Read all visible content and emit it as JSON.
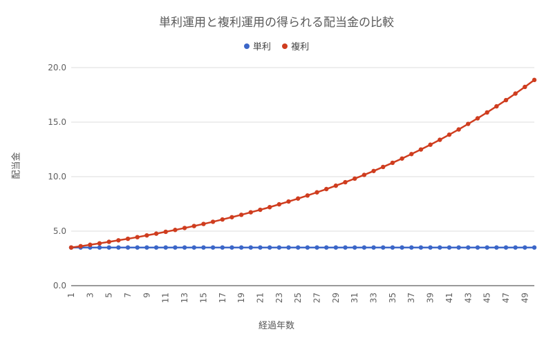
{
  "chart_data": {
    "type": "line",
    "title": "単利運用と複利運用の得られる配当金の比較",
    "xlabel": "経過年数",
    "ylabel": "配当金",
    "x": [
      1,
      2,
      3,
      4,
      5,
      6,
      7,
      8,
      9,
      10,
      11,
      12,
      13,
      14,
      15,
      16,
      17,
      18,
      19,
      20,
      21,
      22,
      23,
      24,
      25,
      26,
      27,
      28,
      29,
      30,
      31,
      32,
      33,
      34,
      35,
      36,
      37,
      38,
      39,
      40,
      41,
      42,
      43,
      44,
      45,
      46,
      47,
      48,
      49,
      50
    ],
    "x_tick_labels": [
      "1",
      "3",
      "5",
      "7",
      "9",
      "11",
      "13",
      "15",
      "17",
      "19",
      "21",
      "23",
      "25",
      "27",
      "29",
      "31",
      "33",
      "35",
      "37",
      "39",
      "41",
      "43",
      "45",
      "47",
      "49"
    ],
    "y_tick_labels": [
      "0.0",
      "5.0",
      "10.0",
      "15.0",
      "20.0"
    ],
    "ylim": [
      0,
      20
    ],
    "grid": true,
    "legend_position": "top",
    "series": [
      {
        "name": "単利",
        "color": "#3b66c8",
        "values": [
          3.5,
          3.5,
          3.5,
          3.5,
          3.5,
          3.5,
          3.5,
          3.5,
          3.5,
          3.5,
          3.5,
          3.5,
          3.5,
          3.5,
          3.5,
          3.5,
          3.5,
          3.5,
          3.5,
          3.5,
          3.5,
          3.5,
          3.5,
          3.5,
          3.5,
          3.5,
          3.5,
          3.5,
          3.5,
          3.5,
          3.5,
          3.5,
          3.5,
          3.5,
          3.5,
          3.5,
          3.5,
          3.5,
          3.5,
          3.5,
          3.5,
          3.5,
          3.5,
          3.5,
          3.5,
          3.5,
          3.5,
          3.5,
          3.5,
          3.5
        ]
      },
      {
        "name": "複利",
        "color": "#cf3d1f",
        "values": [
          3.5,
          3.62,
          3.75,
          3.88,
          4.02,
          4.16,
          4.3,
          4.45,
          4.61,
          4.77,
          4.94,
          5.11,
          5.29,
          5.47,
          5.66,
          5.86,
          6.07,
          6.28,
          6.5,
          6.73,
          6.96,
          7.2,
          7.46,
          7.72,
          7.99,
          8.27,
          8.56,
          8.86,
          9.17,
          9.49,
          9.82,
          10.16,
          10.52,
          10.89,
          11.27,
          11.66,
          12.07,
          12.49,
          12.93,
          13.38,
          13.85,
          14.33,
          14.84,
          15.35,
          15.89,
          16.45,
          17.02,
          17.62,
          18.23,
          18.87
        ]
      }
    ]
  }
}
